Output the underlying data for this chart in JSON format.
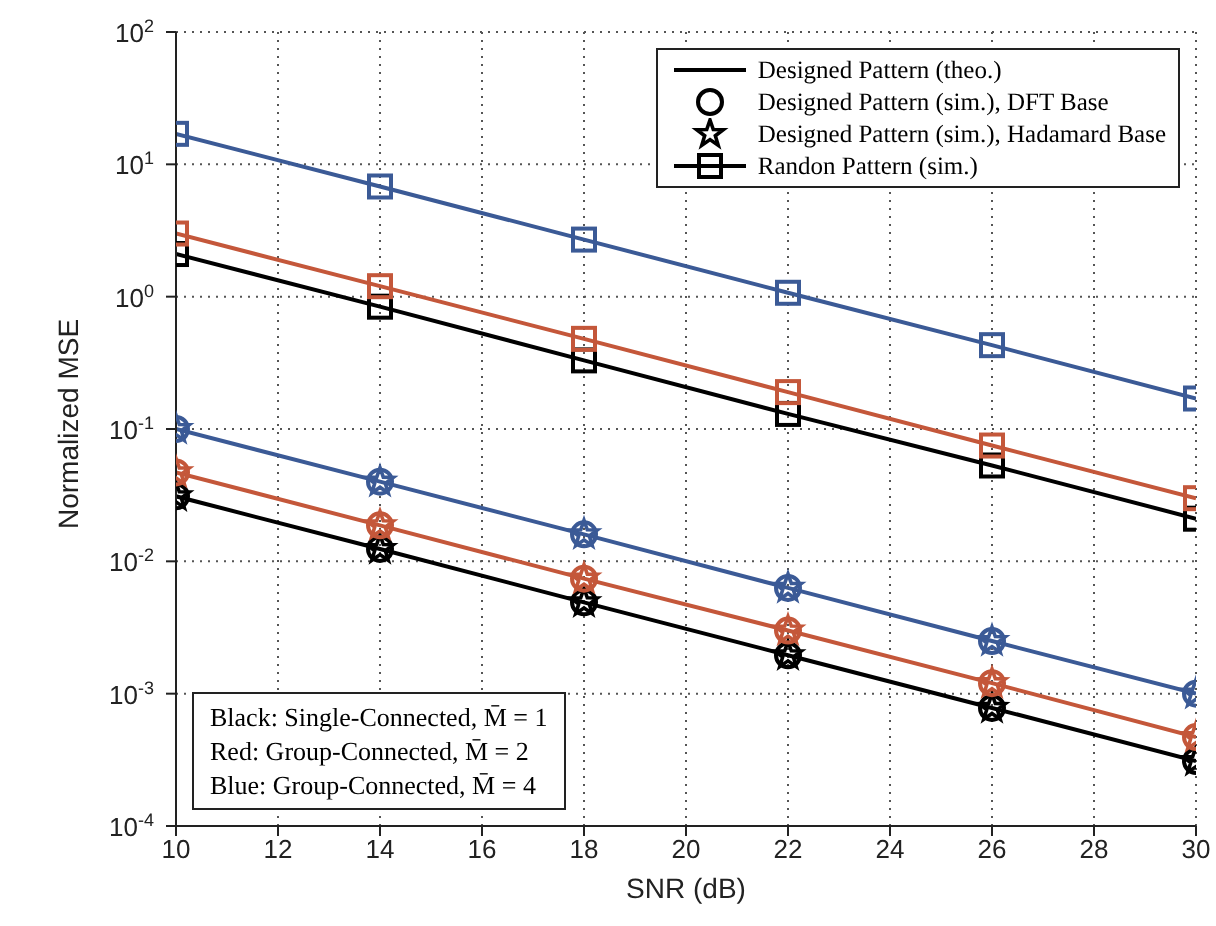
{
  "chart_data": {
    "type": "line",
    "xlabel": "SNR (dB)",
    "ylabel": "Normalized MSE",
    "x": [
      10,
      14,
      18,
      22,
      26,
      30
    ],
    "series": [
      {
        "name": "Designed Pattern (theo.)",
        "marker": "none",
        "color": "#000000",
        "values": [
          0.031,
          0.0124,
          0.0049,
          0.00195,
          0.00078,
          0.00031
        ]
      },
      {
        "name": "Designed Pattern (sim.), DFT Base",
        "type": "scatter",
        "marker": "circle",
        "color": "#000000",
        "values": [
          0.031,
          0.0124,
          0.0049,
          0.00195,
          0.00078,
          0.00031
        ]
      },
      {
        "name": "Designed Pattern (sim.), Hadamard Base",
        "type": "scatter",
        "marker": "star",
        "color": "#000000",
        "values": [
          0.031,
          0.0124,
          0.0049,
          0.00195,
          0.00078,
          0.00031
        ]
      },
      {
        "name": "Randon Pattern (sim.)",
        "marker": "square",
        "color": "#000000",
        "values": [
          2.1,
          0.84,
          0.33,
          0.13,
          0.053,
          0.021
        ]
      },
      {
        "marker": "none",
        "color": "#c4573a",
        "values": [
          0.047,
          0.0187,
          0.0074,
          0.003,
          0.0012,
          0.00047
        ]
      },
      {
        "type": "scatter",
        "marker": "circle",
        "color": "#c4573a",
        "values": [
          0.047,
          0.0187,
          0.0074,
          0.003,
          0.0012,
          0.00047
        ]
      },
      {
        "type": "scatter",
        "marker": "star",
        "color": "#c4573a",
        "values": [
          0.047,
          0.0187,
          0.0074,
          0.003,
          0.0012,
          0.00047
        ]
      },
      {
        "marker": "square",
        "color": "#c4573a",
        "values": [
          3.0,
          1.2,
          0.48,
          0.19,
          0.075,
          0.03
        ]
      },
      {
        "marker": "none",
        "color": "#3b5a96",
        "values": [
          0.1,
          0.04,
          0.016,
          0.0063,
          0.0025,
          0.001
        ]
      },
      {
        "type": "scatter",
        "marker": "circle",
        "color": "#3b5a96",
        "values": [
          0.1,
          0.04,
          0.016,
          0.0063,
          0.0025,
          0.001
        ]
      },
      {
        "type": "scatter",
        "marker": "star",
        "color": "#3b5a96",
        "values": [
          0.1,
          0.04,
          0.016,
          0.0063,
          0.0025,
          0.001
        ]
      },
      {
        "marker": "square",
        "color": "#3b5a96",
        "values": [
          17,
          6.8,
          2.7,
          1.07,
          0.43,
          0.17
        ]
      }
    ],
    "xlim": [
      10,
      30
    ],
    "xticks": [
      10,
      12,
      14,
      16,
      18,
      20,
      22,
      24,
      26,
      28,
      30
    ],
    "ylim": [
      0.0001,
      100
    ],
    "yticks": [
      {
        "value": 0.0001,
        "label": "10$^{-4}$"
      },
      {
        "value": 0.001,
        "label": "10$^{-3}$"
      },
      {
        "value": 0.01,
        "label": "10$^{-2}$"
      },
      {
        "value": 0.1,
        "label": "10$^{-1}$"
      },
      {
        "value": 1,
        "label": "10$^{0}$"
      },
      {
        "value": 10,
        "label": "10$^{1}$"
      },
      {
        "value": 100,
        "label": "10$^{2}$"
      }
    ],
    "log": true,
    "grid": true,
    "legend": "top right",
    "annotations": [
      "Black: Single-Connected, M̄ = 1",
      "Red: Group-Connected, M̄ = 2",
      "Blue: Group-Connected, M̄ = 4"
    ]
  }
}
